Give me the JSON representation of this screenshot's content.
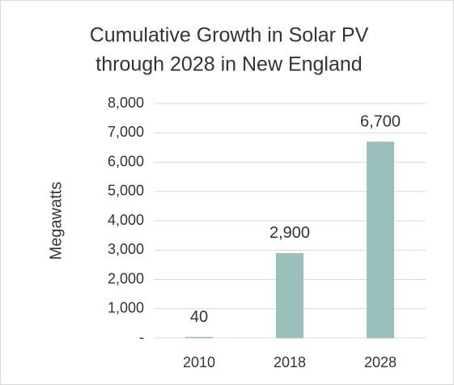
{
  "chart_data": {
    "type": "bar",
    "title": [
      "Cumulative Growth in Solar PV",
      "through 2028 in New England"
    ],
    "y_label": "Megawatts",
    "categories": [
      "2010",
      "2018",
      "2028"
    ],
    "values": [
      40,
      2900,
      6700
    ],
    "value_labels": [
      "40",
      "2,900",
      "6,700"
    ],
    "color": "#9bbfbb",
    "ylim": [
      0,
      8000
    ],
    "yticks": [
      {
        "value": 0,
        "label": "-"
      },
      {
        "value": 1000,
        "label": "1,000"
      },
      {
        "value": 2000,
        "label": "2,000"
      },
      {
        "value": 3000,
        "label": "3,000"
      },
      {
        "value": 4000,
        "label": "4,000"
      },
      {
        "value": 5000,
        "label": "5,000"
      },
      {
        "value": 6000,
        "label": "6,000"
      },
      {
        "value": 7000,
        "label": "7,000"
      },
      {
        "value": 8000,
        "label": "8,000"
      }
    ],
    "grid": true
  }
}
